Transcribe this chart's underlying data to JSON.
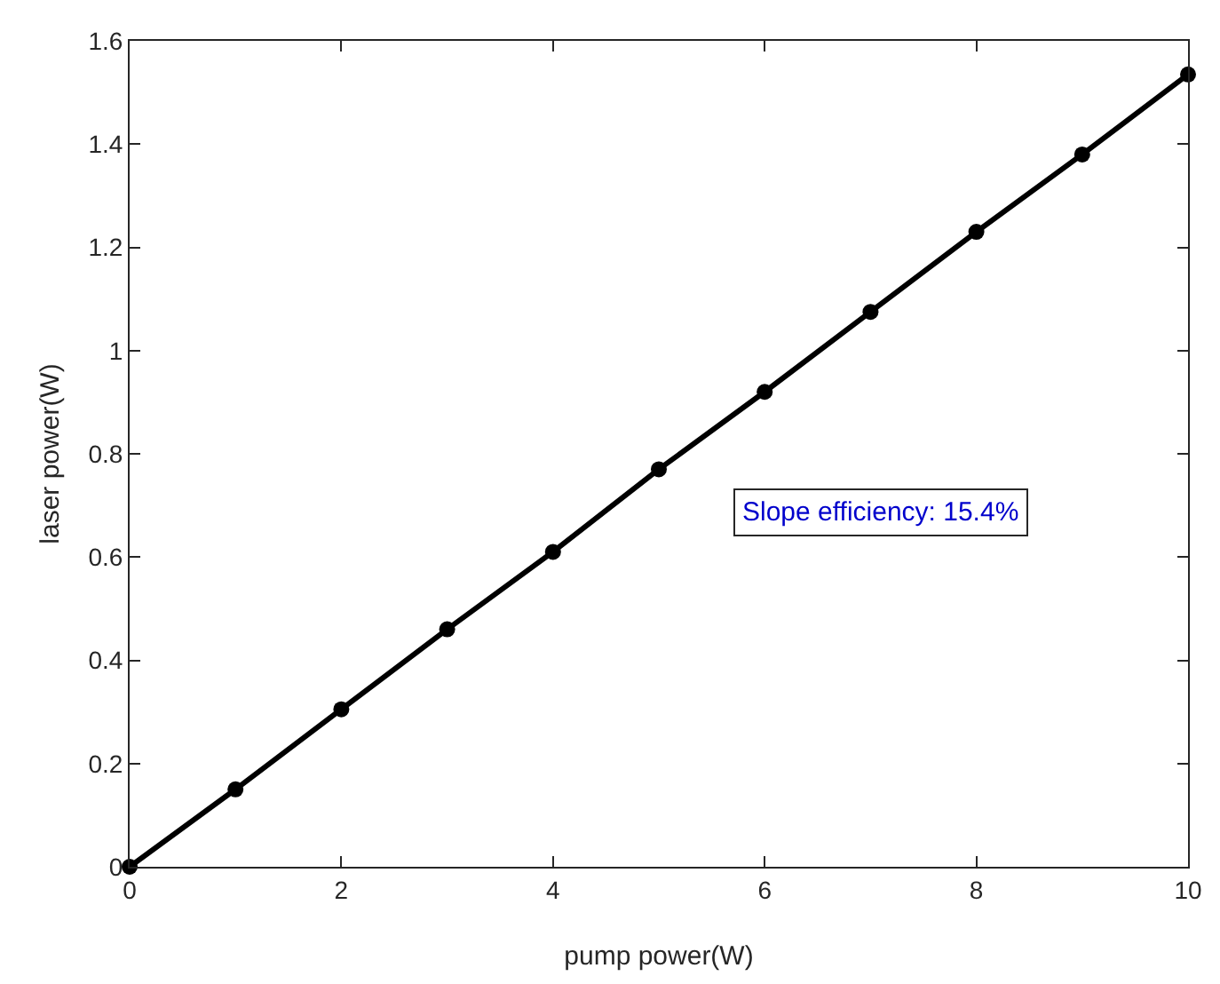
{
  "chart_data": {
    "type": "line",
    "xlabel": "pump power(W)",
    "ylabel": "laser power(W)",
    "x": [
      0,
      1,
      2,
      3,
      4,
      5,
      6,
      7,
      8,
      9,
      10
    ],
    "series": [
      {
        "color": "#000000",
        "values": [
          0,
          0.15,
          0.305,
          0.46,
          0.61,
          0.77,
          0.92,
          1.075,
          1.23,
          1.38,
          1.535
        ]
      }
    ],
    "xlim": [
      0,
      10
    ],
    "xticks": [
      0,
      2,
      4,
      6,
      8,
      10
    ],
    "ylim": [
      0,
      1.6
    ],
    "yticks": [
      0,
      0.2,
      0.4,
      0.6,
      0.8,
      1,
      1.2,
      1.4,
      1.6
    ],
    "marker": "circle",
    "line_style": "solid",
    "grid": false,
    "annotations": [
      "Slope efficiency: 15.4%"
    ]
  }
}
